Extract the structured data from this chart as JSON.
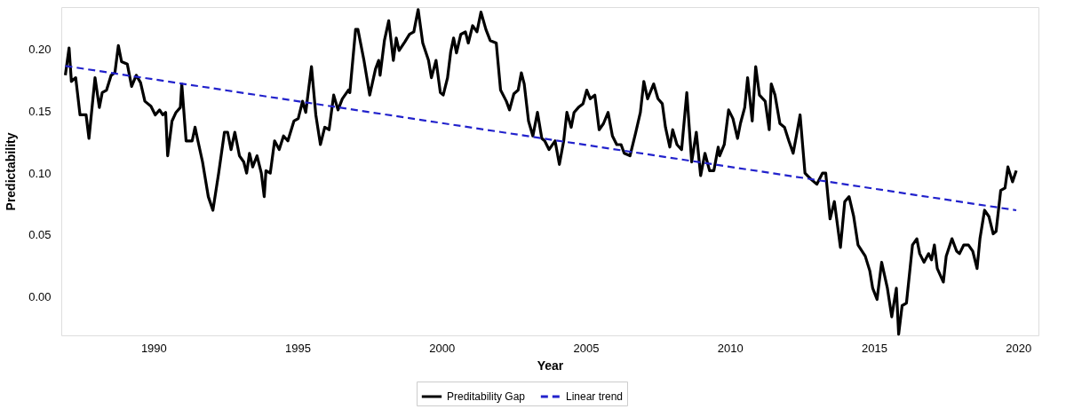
{
  "chart_data": {
    "type": "line",
    "xlabel": "Year",
    "ylabel": "Predictability",
    "xlim": [
      1986.8,
      2020.7
    ],
    "ylim": [
      -0.031,
      0.234
    ],
    "xticks": [
      1990,
      1995,
      2000,
      2005,
      2010,
      2015,
      2020
    ],
    "yticks": [
      {
        "value": 0,
        "label": "0.00"
      },
      {
        "value": 0.05,
        "label": "0.05"
      },
      {
        "value": 0.1,
        "label": "0.10"
      },
      {
        "value": 0.15,
        "label": "0.15"
      },
      {
        "value": 0.2,
        "label": "0.20"
      }
    ],
    "grid": false,
    "legend": "bottom",
    "marker": "none",
    "series": [
      {
        "name": "Preditability Gap",
        "color": "#000000",
        "line_style": "solid",
        "x": [
          1986.94,
          1987.07,
          1987.15,
          1987.3,
          1987.45,
          1987.66,
          1987.76,
          1987.97,
          1988.12,
          1988.22,
          1988.37,
          1988.53,
          1988.66,
          1988.78,
          1988.89,
          1989.09,
          1989.24,
          1989.4,
          1989.55,
          1989.7,
          1989.91,
          1990.06,
          1990.21,
          1990.32,
          1990.42,
          1990.49,
          1990.64,
          1990.78,
          1990.93,
          1990.98,
          1991.13,
          1991.34,
          1991.44,
          1991.54,
          1991.7,
          1991.9,
          1992.06,
          1992.26,
          1992.46,
          1992.57,
          1992.69,
          1992.82,
          1992.98,
          1993.13,
          1993.23,
          1993.33,
          1993.44,
          1993.59,
          1993.74,
          1993.84,
          1993.9,
          1994.05,
          1994.2,
          1994.36,
          1994.51,
          1994.66,
          1994.87,
          1995.02,
          1995.17,
          1995.28,
          1995.48,
          1995.63,
          1995.79,
          1995.94,
          1996.09,
          1996.25,
          1996.4,
          1996.55,
          1996.76,
          1996.81,
          1997.01,
          1997.09,
          1997.3,
          1997.5,
          1997.7,
          1997.81,
          1997.86,
          1998.01,
          1998.16,
          1998.32,
          1998.42,
          1998.52,
          1998.72,
          1998.88,
          1999.03,
          1999.18,
          1999.34,
          1999.54,
          1999.64,
          1999.8,
          1999.95,
          2000.05,
          2000.2,
          2000.31,
          2000.41,
          2000.51,
          2000.66,
          2000.82,
          2000.92,
          2001.07,
          2001.22,
          2001.36,
          2001.53,
          2001.68,
          2001.89,
          2002.04,
          2002.24,
          2002.35,
          2002.5,
          2002.65,
          2002.76,
          2002.86,
          2003.01,
          2003.16,
          2003.32,
          2003.47,
          2003.57,
          2003.72,
          2003.93,
          2004.08,
          2004.23,
          2004.34,
          2004.49,
          2004.59,
          2004.74,
          2004.9,
          2005.03,
          2005.15,
          2005.31,
          2005.46,
          2005.61,
          2005.77,
          2005.92,
          2006.07,
          2006.22,
          2006.33,
          2006.53,
          2006.73,
          2006.89,
          2007.01,
          2007.14,
          2007.35,
          2007.5,
          2007.65,
          2007.76,
          2007.91,
          2008.01,
          2008.16,
          2008.32,
          2008.5,
          2008.67,
          2008.83,
          2008.98,
          2009.13,
          2009.29,
          2009.44,
          2009.59,
          2009.64,
          2009.8,
          2009.95,
          2010.1,
          2010.26,
          2010.36,
          2010.51,
          2010.61,
          2010.77,
          2010.89,
          2011.02,
          2011.22,
          2011.36,
          2011.43,
          2011.56,
          2011.73,
          2011.89,
          2012.04,
          2012.19,
          2012.3,
          2012.43,
          2012.6,
          2012.81,
          2013.01,
          2013.21,
          2013.32,
          2013.47,
          2013.62,
          2013.83,
          2013.98,
          2014.13,
          2014.29,
          2014.44,
          2014.69,
          2014.85,
          2014.95,
          2015.1,
          2015.26,
          2015.46,
          2015.61,
          2015.77,
          2015.85,
          2015.97,
          2016.12,
          2016.33,
          2016.48,
          2016.58,
          2016.73,
          2016.89,
          2016.99,
          2017.09,
          2017.19,
          2017.4,
          2017.5,
          2017.7,
          2017.86,
          2017.96,
          2018.11,
          2018.27,
          2018.42,
          2018.57,
          2018.67,
          2018.83,
          2018.98,
          2019.13,
          2019.23,
          2019.39,
          2019.54,
          2019.64,
          2019.8,
          2019.93
        ],
        "values": [
          0.179,
          0.201,
          0.174,
          0.177,
          0.147,
          0.147,
          0.128,
          0.177,
          0.153,
          0.165,
          0.167,
          0.179,
          0.181,
          0.203,
          0.19,
          0.188,
          0.17,
          0.179,
          0.173,
          0.158,
          0.154,
          0.147,
          0.151,
          0.147,
          0.149,
          0.114,
          0.142,
          0.149,
          0.153,
          0.172,
          0.126,
          0.126,
          0.137,
          0.126,
          0.109,
          0.081,
          0.07,
          0.1,
          0.133,
          0.133,
          0.119,
          0.133,
          0.114,
          0.109,
          0.1,
          0.116,
          0.105,
          0.114,
          0.1,
          0.081,
          0.102,
          0.1,
          0.126,
          0.119,
          0.13,
          0.126,
          0.142,
          0.144,
          0.158,
          0.149,
          0.186,
          0.147,
          0.123,
          0.137,
          0.135,
          0.163,
          0.151,
          0.16,
          0.167,
          0.165,
          0.216,
          0.216,
          0.191,
          0.163,
          0.184,
          0.191,
          0.179,
          0.207,
          0.223,
          0.191,
          0.209,
          0.199,
          0.206,
          0.212,
          0.214,
          0.232,
          0.205,
          0.191,
          0.177,
          0.191,
          0.165,
          0.163,
          0.177,
          0.198,
          0.209,
          0.197,
          0.212,
          0.214,
          0.205,
          0.219,
          0.214,
          0.23,
          0.216,
          0.207,
          0.205,
          0.167,
          0.158,
          0.151,
          0.164,
          0.167,
          0.181,
          0.172,
          0.142,
          0.13,
          0.149,
          0.128,
          0.126,
          0.119,
          0.126,
          0.107,
          0.126,
          0.149,
          0.137,
          0.149,
          0.153,
          0.156,
          0.167,
          0.16,
          0.163,
          0.135,
          0.14,
          0.149,
          0.13,
          0.123,
          0.123,
          0.116,
          0.114,
          0.133,
          0.149,
          0.174,
          0.16,
          0.172,
          0.16,
          0.156,
          0.137,
          0.121,
          0.135,
          0.123,
          0.119,
          0.165,
          0.109,
          0.133,
          0.098,
          0.116,
          0.102,
          0.102,
          0.121,
          0.114,
          0.123,
          0.151,
          0.144,
          0.128,
          0.14,
          0.153,
          0.177,
          0.142,
          0.186,
          0.163,
          0.158,
          0.135,
          0.172,
          0.163,
          0.14,
          0.137,
          0.126,
          0.116,
          0.13,
          0.147,
          0.1,
          0.095,
          0.091,
          0.1,
          0.1,
          0.063,
          0.077,
          0.04,
          0.077,
          0.081,
          0.065,
          0.042,
          0.033,
          0.021,
          0.007,
          -0.002,
          0.028,
          0.007,
          -0.016,
          0.007,
          -0.03,
          -0.007,
          -0.005,
          0.042,
          0.047,
          0.035,
          0.028,
          0.035,
          0.03,
          0.042,
          0.023,
          0.012,
          0.033,
          0.047,
          0.037,
          0.035,
          0.042,
          0.042,
          0.037,
          0.023,
          0.047,
          0.07,
          0.065,
          0.051,
          0.053,
          0.086,
          0.088,
          0.105,
          0.093,
          0.102
        ]
      },
      {
        "name": "Linear trend",
        "color": "#2222cc",
        "line_style": "dashed",
        "x": [
          1986.94,
          2019.93
        ],
        "values": [
          0.1865,
          0.07
        ]
      }
    ]
  }
}
